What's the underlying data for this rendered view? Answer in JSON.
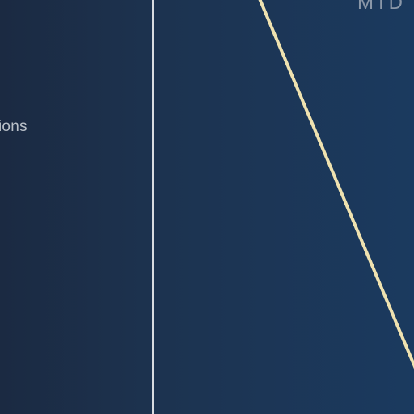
{
  "left_panel": {
    "label": "ions"
  },
  "right_panel": {
    "period_label": "MTD"
  },
  "colors": {
    "background_left": "#1b2a42",
    "background_right": "#1b3a5f",
    "divider": "#d7dbe0",
    "trend_line": "#efe2b0",
    "label_text": "#b9c0c8",
    "period_text": "#8a97a8"
  }
}
